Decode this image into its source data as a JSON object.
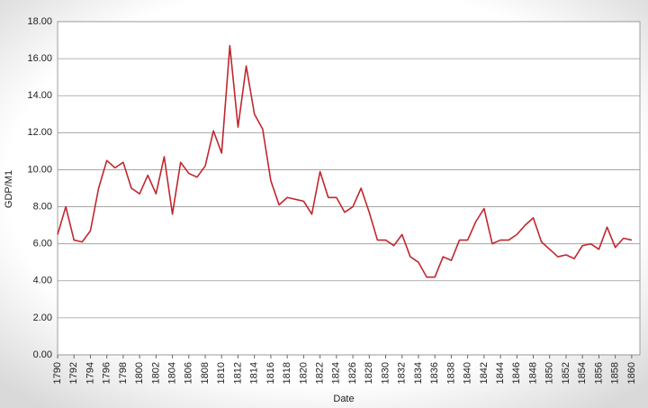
{
  "chart_data": {
    "type": "line",
    "xlabel": "Date",
    "ylabel": "GDP/M1",
    "x": [
      1790,
      1791,
      1792,
      1793,
      1794,
      1795,
      1796,
      1797,
      1798,
      1799,
      1800,
      1801,
      1802,
      1803,
      1804,
      1805,
      1806,
      1807,
      1808,
      1809,
      1810,
      1811,
      1812,
      1813,
      1814,
      1815,
      1816,
      1817,
      1818,
      1819,
      1820,
      1821,
      1822,
      1823,
      1824,
      1825,
      1826,
      1827,
      1828,
      1829,
      1830,
      1831,
      1832,
      1833,
      1834,
      1835,
      1836,
      1837,
      1838,
      1839,
      1840,
      1841,
      1842,
      1843,
      1844,
      1845,
      1846,
      1847,
      1848,
      1849,
      1850,
      1851,
      1852,
      1853,
      1854,
      1855,
      1856,
      1857,
      1858,
      1859,
      1860
    ],
    "series": [
      {
        "name": "GDP/M1",
        "color": "#c1272d",
        "values": [
          6.5,
          8.0,
          6.2,
          6.1,
          6.7,
          9.0,
          10.5,
          10.1,
          10.4,
          9.0,
          8.7,
          9.7,
          8.7,
          10.7,
          7.6,
          10.4,
          9.8,
          9.6,
          10.2,
          12.1,
          10.9,
          16.7,
          12.3,
          15.6,
          13.0,
          12.2,
          9.4,
          8.1,
          8.5,
          8.4,
          8.3,
          7.6,
          9.9,
          8.5,
          8.5,
          7.7,
          8.0,
          9.0,
          7.7,
          6.2,
          6.2,
          5.9,
          6.5,
          5.3,
          5.0,
          4.2,
          4.2,
          5.3,
          5.1,
          6.2,
          6.2,
          7.2,
          7.9,
          6.0,
          6.2,
          6.2,
          6.5,
          7.0,
          7.4,
          6.1,
          5.7,
          5.3,
          5.4,
          5.2,
          5.9,
          6.0,
          5.7,
          6.9,
          5.8,
          6.3,
          6.2
        ]
      }
    ],
    "xlim": [
      1790,
      1861
    ],
    "xticks": [
      1790,
      1792,
      1794,
      1796,
      1798,
      1800,
      1802,
      1804,
      1806,
      1808,
      1810,
      1812,
      1814,
      1816,
      1818,
      1820,
      1822,
      1824,
      1826,
      1828,
      1830,
      1832,
      1834,
      1836,
      1838,
      1840,
      1842,
      1844,
      1846,
      1848,
      1850,
      1852,
      1854,
      1856,
      1858,
      1860
    ],
    "ylim": [
      0,
      18
    ],
    "yticks": [
      {
        "value": 0,
        "label": "0.00"
      },
      {
        "value": 2,
        "label": "2.00"
      },
      {
        "value": 4,
        "label": "4.00"
      },
      {
        "value": 6,
        "label": "6.00"
      },
      {
        "value": 8,
        "label": "8.00"
      },
      {
        "value": 10,
        "label": "10.00"
      },
      {
        "value": 12,
        "label": "12.00"
      },
      {
        "value": 14,
        "label": "14.00"
      },
      {
        "value": 16,
        "label": "16.00"
      },
      {
        "value": 18,
        "label": "18.00"
      }
    ],
    "grid": true
  }
}
